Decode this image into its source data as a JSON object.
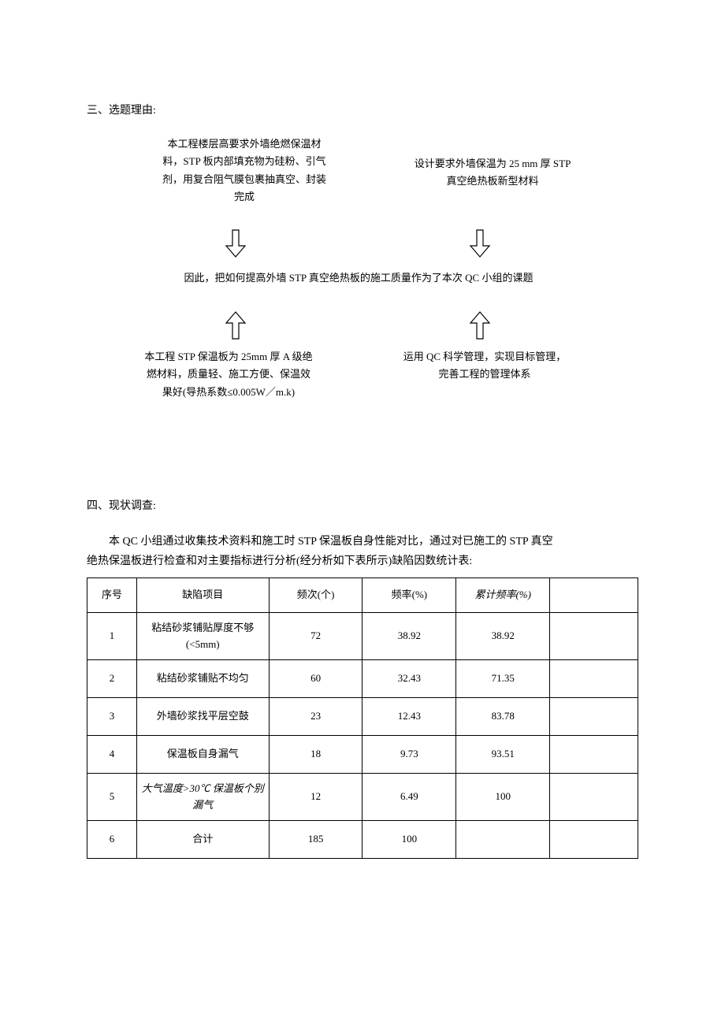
{
  "section3": {
    "title": "三、选题理由:",
    "boxes": {
      "topLeft": "本工程楼层高要求外墙绝燃保温材料，STP 板内部填充物为硅粉、引气剂，用复合阻气膜包裹抽真空、封装完成",
      "topRight": "设计要求外墙保温为 25 mm 厚 STP 真空绝热板新型材料",
      "center": "因此，把如何提高外墙 STP 真空绝热板的施工质量作为了本次 QC 小组的课题",
      "bottomLeft": "本工程 STP 保温板为 25mm 厚 A 级绝燃材料，质量轻、施工方便、保温效果好(导热系数≤0.005W／m.k)",
      "bottomRight": "运用 QC 科学管理，实现目标管理，完善工程的管理体系"
    }
  },
  "section4": {
    "title": "四、现状调查:",
    "para1": "本 QC 小组通过收集技术资料和施工时 STP 保温板自身性能对比，通过对已施工的 STP 真空",
    "para2": "绝热保温板进行检查和对主要指标进行分析(经分析如下表所示)缺陷因数统计表:"
  },
  "table": {
    "headers": {
      "seq": "序号",
      "item": "缺陷项目",
      "freq": "频次(个)",
      "rate": "频率(%)",
      "cum": "累计频率(%)"
    },
    "rows": [
      {
        "seq": "1",
        "item": "粘结砂浆铺贴厚度不够 (<5mm)",
        "freq": "72",
        "rate": "38.92",
        "cum": "38.92",
        "italic": false,
        "tall": true
      },
      {
        "seq": "2",
        "item": "粘结砂浆铺贴不均匀",
        "freq": "60",
        "rate": "32.43",
        "cum": "71.35",
        "italic": false,
        "tall": false
      },
      {
        "seq": "3",
        "item": "外墙砂浆找平层空鼓",
        "freq": "23",
        "rate": "12.43",
        "cum": "83.78",
        "italic": false,
        "tall": false
      },
      {
        "seq": "4",
        "item": "保温板自身漏气",
        "freq": "18",
        "rate": "9.73",
        "cum": "93.51",
        "italic": false,
        "tall": false
      },
      {
        "seq": "5",
        "item": "大气温度>30℃ 保温板个别漏气",
        "freq": "12",
        "rate": "6.49",
        "cum": "100",
        "italic": true,
        "tall": true
      },
      {
        "seq": "6",
        "item": "合计",
        "freq": "185",
        "rate": "100",
        "cum": "",
        "italic": false,
        "tall": false
      }
    ]
  },
  "arrow": {
    "stroke": "#000000",
    "fill": "#ffffff",
    "strokeWidth": 1.2
  }
}
